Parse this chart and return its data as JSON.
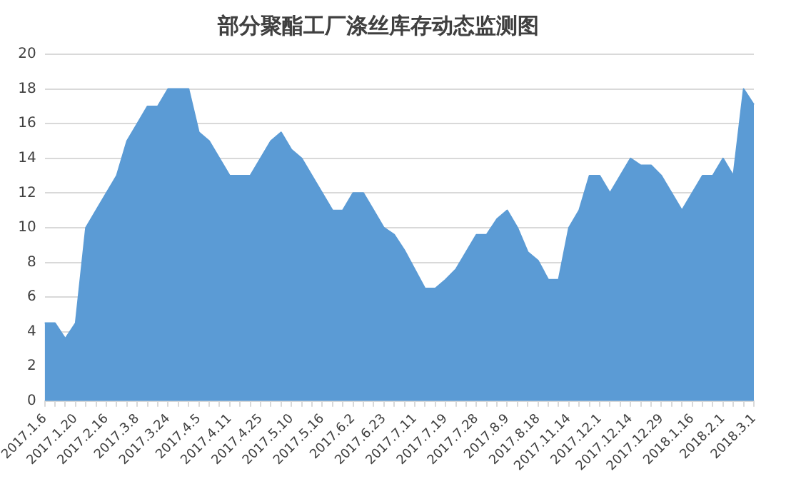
{
  "chart_data": {
    "type": "area",
    "title": "部分聚酯工厂涤丝库存动态监测图",
    "categories": [
      "2017.1.6",
      null,
      null,
      "2017.1.20",
      null,
      null,
      "2017.2.16",
      null,
      null,
      "2017.3.8",
      null,
      null,
      "2017.3.24",
      null,
      null,
      "2017.4.5",
      null,
      null,
      "2017.4.11",
      null,
      null,
      "2017.4.25",
      null,
      null,
      "2017.5.10",
      null,
      null,
      "2017.5.16",
      null,
      null,
      "2017.6.2",
      null,
      null,
      "2017.6.23",
      null,
      null,
      "2017.7.11",
      null,
      null,
      "2017.7.19",
      null,
      null,
      "2017.7.28",
      null,
      null,
      "2017.8.9",
      null,
      null,
      "2017.8.18",
      null,
      null,
      "2017.11.14",
      null,
      null,
      "2017.12.1",
      null,
      null,
      "2017.12.14",
      null,
      null,
      "2017.12.29",
      null,
      null,
      "2018.1.16",
      null,
      null,
      "2018.2.1",
      null,
      null,
      "2018.3.1"
    ],
    "series": [
      {
        "color": "#5b9bd5",
        "values": [
          4.5,
          4.5,
          3.6,
          4.5,
          10,
          11,
          12,
          13,
          15,
          16,
          17,
          17,
          18,
          18,
          18,
          15.5,
          15,
          14,
          13,
          13,
          13,
          14,
          15,
          15.5,
          14.5,
          14,
          13,
          12,
          11,
          11,
          12,
          12,
          11,
          10,
          9.6,
          8.7,
          7.6,
          6.5,
          6.5,
          7,
          7.6,
          8.6,
          9.6,
          9.6,
          10.5,
          11,
          10,
          8.6,
          8.1,
          7,
          7,
          10,
          11,
          13,
          13,
          12,
          13,
          14,
          13.6,
          13.6,
          13,
          12,
          11,
          12,
          13,
          13,
          14,
          13,
          18,
          17.1
        ]
      }
    ],
    "ylim": [
      0,
      20
    ],
    "yticks": [
      0,
      2,
      4,
      6,
      8,
      10,
      12,
      14,
      16,
      18,
      20
    ],
    "grid": "y",
    "legend": false
  }
}
